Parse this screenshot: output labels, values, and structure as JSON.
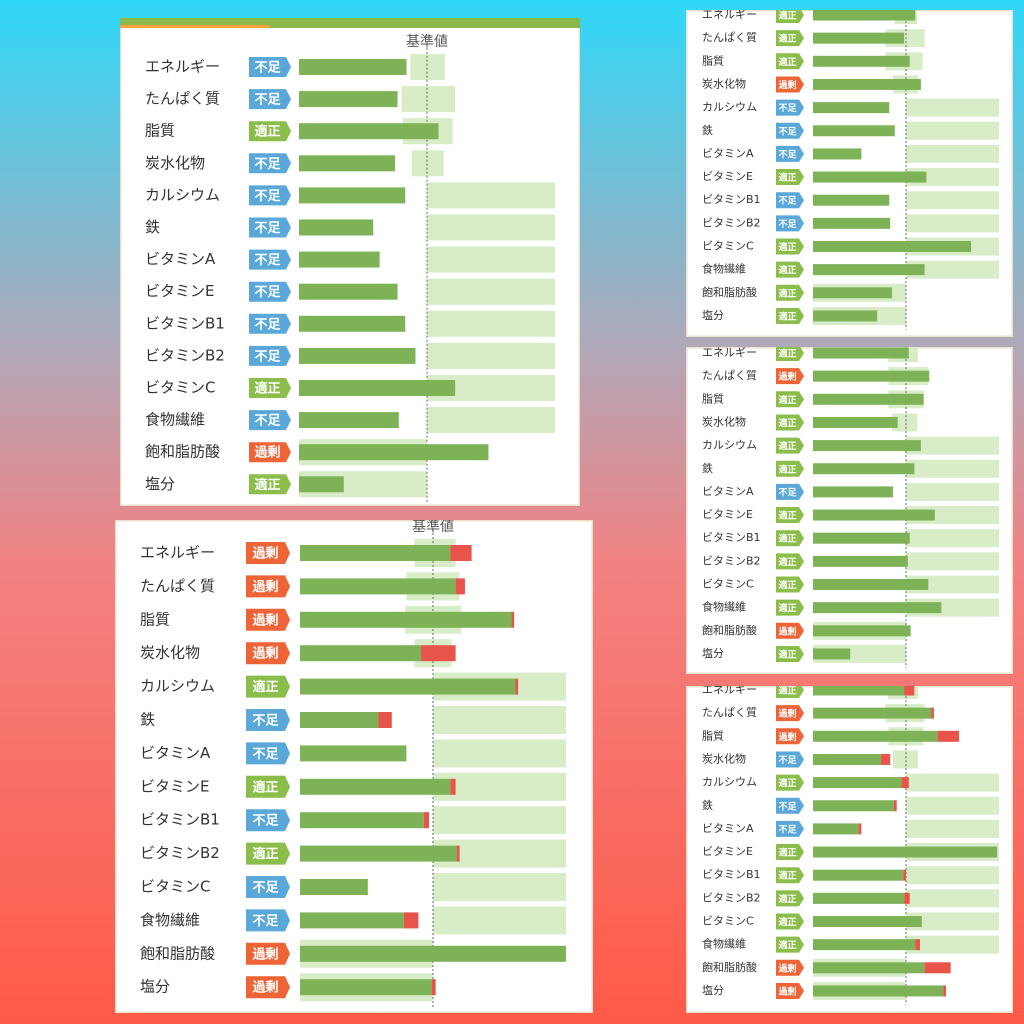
{
  "nutrients": [
    "エネルギー",
    "たんぱく質",
    "脂質",
    "炭水化物",
    "カルシウム",
    "鉄",
    "ビタミンA",
    "ビタミンE",
    "ビタミンB1",
    "ビタミンB2",
    "ビタミンC",
    "食物繊維",
    "飽和脂肪酸",
    "塩分"
  ],
  "panels": [
    {
      "reference_label": "基準値",
      "rows": [
        {
          "status": "不足",
          "value": 84,
          "range": [
            87,
            114
          ]
        },
        {
          "status": "不足",
          "value": 77,
          "range": [
            80,
            122
          ]
        },
        {
          "status": "適正",
          "value": 109,
          "range": [
            81,
            120
          ]
        },
        {
          "status": "不足",
          "value": 75,
          "range": [
            88,
            113
          ]
        },
        {
          "status": "不足",
          "value": 83,
          "range": [
            100,
            200
          ]
        },
        {
          "status": "不足",
          "value": 58,
          "range": [
            100,
            200
          ]
        },
        {
          "status": "不足",
          "value": 63,
          "range": [
            100,
            200
          ]
        },
        {
          "status": "不足",
          "value": 77,
          "range": [
            100,
            200
          ]
        },
        {
          "status": "不足",
          "value": 83,
          "range": [
            100,
            200
          ]
        },
        {
          "status": "不足",
          "value": 91,
          "range": [
            100,
            200
          ]
        },
        {
          "status": "適正",
          "value": 122,
          "range": [
            100,
            200
          ]
        },
        {
          "status": "不足",
          "value": 78,
          "range": [
            100,
            200
          ]
        },
        {
          "status": "過剰",
          "value": 148,
          "range": [
            0,
            100
          ]
        },
        {
          "status": "適正",
          "value": 35,
          "range": [
            0,
            100
          ]
        }
      ]
    },
    {
      "reference_label": "基準値",
      "rows": [
        {
          "status": "過剰",
          "value": 113,
          "excess": 16,
          "range": [
            86,
            117
          ]
        },
        {
          "status": "過剰",
          "value": 117,
          "excess": 7,
          "range": [
            80,
            120
          ]
        },
        {
          "status": "過剰",
          "value": 159,
          "excess": 2,
          "range": [
            79,
            121
          ]
        },
        {
          "status": "過剰",
          "value": 91,
          "excess": 26,
          "range": [
            86,
            114
          ]
        },
        {
          "status": "適正",
          "value": 162,
          "excess": 2,
          "range": [
            100,
            200
          ]
        },
        {
          "status": "不足",
          "value": 59,
          "excess": 10,
          "range": [
            100,
            200
          ]
        },
        {
          "status": "不足",
          "value": 80,
          "range": [
            100,
            200
          ]
        },
        {
          "status": "適正",
          "value": 113,
          "excess": 4,
          "range": [
            100,
            200
          ]
        },
        {
          "status": "不足",
          "value": 93,
          "excess": 4,
          "range": [
            100,
            200
          ]
        },
        {
          "status": "適正",
          "value": 118,
          "excess": 2,
          "range": [
            100,
            200
          ]
        },
        {
          "status": "不足",
          "value": 51,
          "range": [
            100,
            200
          ]
        },
        {
          "status": "不足",
          "value": 78,
          "excess": 11,
          "range": [
            100,
            200
          ]
        },
        {
          "status": "過剰",
          "value": 200,
          "range": [
            0,
            100
          ]
        },
        {
          "status": "過剰",
          "value": 99,
          "excess": 3,
          "range": [
            0,
            100
          ]
        }
      ]
    },
    {
      "rows": [
        {
          "status": "適正",
          "value": 110,
          "range": [
            88,
            112
          ]
        },
        {
          "status": "適正",
          "value": 98,
          "range": [
            78,
            120
          ]
        },
        {
          "status": "適正",
          "value": 104,
          "range": [
            78,
            118
          ]
        },
        {
          "status": "過剰",
          "value": 116,
          "range": [
            86,
            113
          ]
        },
        {
          "status": "不足",
          "value": 82,
          "range": [
            100,
            200
          ]
        },
        {
          "status": "不足",
          "value": 88,
          "range": [
            100,
            200
          ]
        },
        {
          "status": "不足",
          "value": 52,
          "range": [
            100,
            200
          ]
        },
        {
          "status": "適正",
          "value": 122,
          "range": [
            100,
            200
          ]
        },
        {
          "status": "不足",
          "value": 82,
          "range": [
            100,
            200
          ]
        },
        {
          "status": "不足",
          "value": 83,
          "range": [
            100,
            200
          ]
        },
        {
          "status": "適正",
          "value": 170,
          "range": [
            100,
            200
          ]
        },
        {
          "status": "適正",
          "value": 120,
          "range": [
            100,
            200
          ]
        },
        {
          "status": "適正",
          "value": 85,
          "range": [
            0,
            100
          ]
        },
        {
          "status": "適正",
          "value": 69,
          "range": [
            0,
            100
          ]
        }
      ]
    },
    {
      "rows": [
        {
          "status": "適正",
          "value": 103,
          "range": [
            81,
            113
          ]
        },
        {
          "status": "過剰",
          "value": 125,
          "range": [
            81,
            124
          ]
        },
        {
          "status": "適正",
          "value": 119,
          "range": [
            81,
            119
          ]
        },
        {
          "status": "適正",
          "value": 91,
          "range": [
            85,
            112
          ]
        },
        {
          "status": "適正",
          "value": 116,
          "range": [
            100,
            200
          ]
        },
        {
          "status": "適正",
          "value": 109,
          "range": [
            100,
            200
          ]
        },
        {
          "status": "不足",
          "value": 86,
          "range": [
            100,
            200
          ]
        },
        {
          "status": "適正",
          "value": 131,
          "range": [
            100,
            200
          ]
        },
        {
          "status": "適正",
          "value": 104,
          "range": [
            100,
            200
          ]
        },
        {
          "status": "適正",
          "value": 102,
          "range": [
            100,
            200
          ]
        },
        {
          "status": "適正",
          "value": 124,
          "range": [
            100,
            200
          ]
        },
        {
          "status": "適正",
          "value": 138,
          "range": [
            100,
            200
          ]
        },
        {
          "status": "過剰",
          "value": 105,
          "range": [
            0,
            100
          ]
        },
        {
          "status": "適正",
          "value": 40,
          "range": [
            0,
            100
          ]
        }
      ]
    },
    {
      "rows": [
        {
          "status": "適正",
          "value": 98,
          "excess": 11,
          "range": [
            81,
            113
          ]
        },
        {
          "status": "過剰",
          "value": 127,
          "excess": 3,
          "range": [
            78,
            120
          ]
        },
        {
          "status": "過剰",
          "value": 134,
          "excess": 23,
          "range": [
            81,
            119
          ]
        },
        {
          "status": "不足",
          "value": 73,
          "excess": 10,
          "range": [
            86,
            113
          ]
        },
        {
          "status": "適正",
          "value": 95,
          "excess": 8,
          "range": [
            100,
            200
          ]
        },
        {
          "status": "不足",
          "value": 87,
          "excess": 3,
          "range": [
            100,
            200
          ]
        },
        {
          "status": "不足",
          "value": 49,
          "excess": 3,
          "range": [
            100,
            200
          ]
        },
        {
          "status": "適正",
          "value": 198,
          "range": [
            100,
            200
          ]
        },
        {
          "status": "適正",
          "value": 97,
          "excess": 3,
          "range": [
            100,
            200
          ]
        },
        {
          "status": "適正",
          "value": 98,
          "excess": 6,
          "range": [
            100,
            200
          ]
        },
        {
          "status": "適正",
          "value": 117,
          "range": [
            100,
            200
          ]
        },
        {
          "status": "適正",
          "value": 110,
          "excess": 5,
          "range": [
            100,
            200
          ]
        },
        {
          "status": "過剰",
          "value": 120,
          "excess": 28,
          "range": [
            0,
            100
          ]
        },
        {
          "status": "過剰",
          "value": 140,
          "excess": 3,
          "range": [
            0,
            100
          ]
        }
      ]
    }
  ]
}
